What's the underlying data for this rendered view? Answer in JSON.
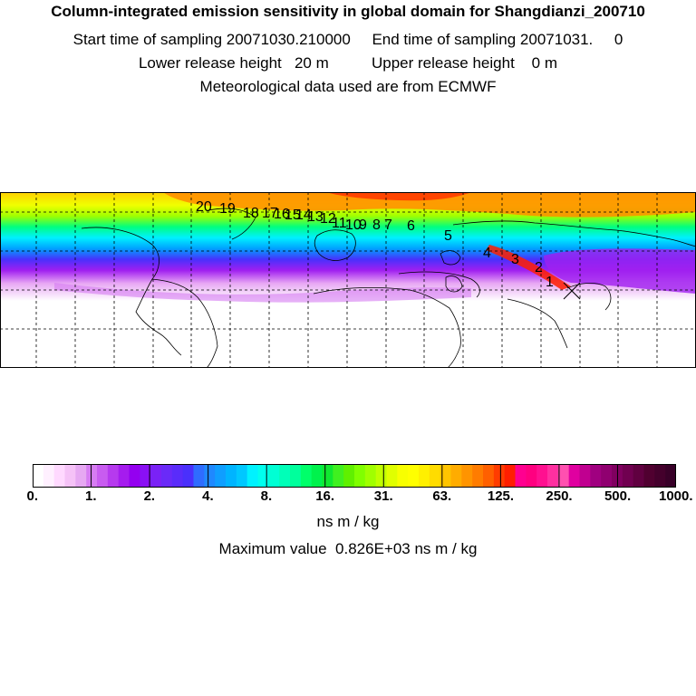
{
  "header": {
    "title": "Column-integrated emission sensitivity in global domain for Shangdianzi_200710",
    "sampling_line": "Start time of sampling 20071030.210000     End time of sampling 20071031.     0",
    "height_line": "Lower release height   20 m          Upper release height    0 m",
    "met_line": "Meteorological data used are from ECMWF"
  },
  "map": {
    "station_marker": "x-cross-icon",
    "trajectory_labels": [
      "1",
      "2",
      "3",
      "4",
      "5",
      "6",
      "7",
      "8",
      "9",
      "10",
      "11",
      "12",
      "13",
      "14",
      "15",
      "16",
      "17",
      "18",
      "19",
      "20"
    ],
    "trajectory_color": "#e8002c"
  },
  "colorbar": {
    "tick_labels": [
      "0.",
      "1.",
      "2.",
      "4.",
      "8.",
      "16.",
      "31.",
      "63.",
      "125.",
      "250.",
      "500.",
      "1000."
    ],
    "colors": [
      "#ffffff",
      "#fff0ff",
      "#ffd9ff",
      "#f5c2f7",
      "#e6a8f2",
      "#d67cf2",
      "#c85cf0",
      "#b63aee",
      "#a51cee",
      "#9400f0",
      "#8a10f4",
      "#7a22f6",
      "#6a2af8",
      "#5a2cfa",
      "#4a30fc",
      "#2f6cff",
      "#1f88ff",
      "#0f9eff",
      "#00b4ff",
      "#00c8ff",
      "#00f2ff",
      "#00ffee",
      "#00ffd4",
      "#00ffb8",
      "#00ff9c",
      "#00ff6a",
      "#00f24c",
      "#10e830",
      "#40f020",
      "#60f000",
      "#80ff00",
      "#a0ff00",
      "#c0ff00",
      "#e0ff00",
      "#f8ff00",
      "#ffff00",
      "#fff000",
      "#ffdc00",
      "#ffc400",
      "#ffac00",
      "#ff9400",
      "#ff7c00",
      "#ff6000",
      "#ff3c00",
      "#ff1e00",
      "#ff0090",
      "#ff0080",
      "#ff1090",
      "#ff30a0",
      "#ff50b0",
      "#e000a0",
      "#c00090",
      "#a00080",
      "#900070",
      "#800060",
      "#700050",
      "#600040",
      "#500030",
      "#44002c",
      "#380028"
    ],
    "unit": "ns m / kg",
    "max_value_text": "Maximum value  0.826E+03 ns m / kg"
  }
}
